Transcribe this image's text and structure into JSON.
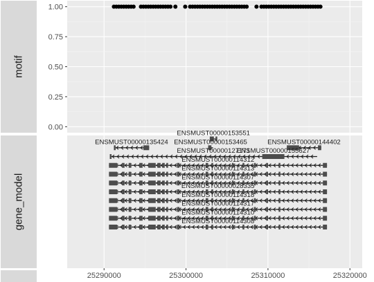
{
  "chart_data": {
    "type": "scatter",
    "layout": "faceted, two panels stacked vertically, shared x axis",
    "x_axis": {
      "ticks": [
        25290000,
        25300000,
        25310000,
        25320000
      ],
      "tick_labels": [
        "25290000",
        "25300000",
        "25310000",
        "25320000"
      ],
      "xlim": [
        25285500,
        25321500
      ]
    },
    "grid": true,
    "panels": [
      {
        "strip_label": "motif",
        "type": "scatter",
        "y_ticks": [
          0.0,
          0.25,
          0.5,
          0.75,
          1.0
        ],
        "y_tick_labels": [
          "0.00",
          "0.25",
          "0.50",
          "0.75",
          "1.00"
        ],
        "ylim": [
          -0.05,
          1.05
        ],
        "points": {
          "y": 1.0,
          "x": [
            25291200,
            25291500,
            25291800,
            25292100,
            25292400,
            25292700,
            25293000,
            25293300,
            25293600,
            25294500,
            25294800,
            25295100,
            25295400,
            25295700,
            25296000,
            25296300,
            25296600,
            25296900,
            25297200,
            25297500,
            25297800,
            25298100,
            25298700,
            25299900,
            25300500,
            25300800,
            25301100,
            25301400,
            25301700,
            25302000,
            25302300,
            25302600,
            25302900,
            25303200,
            25303500,
            25303800,
            25304100,
            25304400,
            25304700,
            25305000,
            25305300,
            25305600,
            25305900,
            25306200,
            25306500,
            25306800,
            25307100,
            25307400,
            25308600,
            25309200,
            25309500,
            25309800,
            25310100,
            25310400,
            25310700,
            25311000,
            25311300,
            25311600,
            25311900,
            25312200,
            25312500,
            25312800,
            25313100,
            25313400,
            25313700,
            25314000,
            25314300,
            25314600,
            25314900,
            25315200,
            25315500,
            25315800,
            25316100,
            25316400
          ]
        }
      },
      {
        "strip_label": "gene_model",
        "type": "gene_model",
        "transcripts": [
          {
            "id": "ENSMUST00000153551",
            "row": 1,
            "start": 25302900,
            "end": 25303800,
            "strand": "+",
            "exons": [
              [
                25302900,
                25303400
              ],
              [
                25303600,
                25303800
              ]
            ]
          },
          {
            "id": "ENSMUST00000135424",
            "row": 2,
            "start": 25291200,
            "end": 25295500,
            "strand": "-",
            "exons": [
              [
                25291200,
                25291400
              ],
              [
                25294800,
                25295500
              ]
            ]
          },
          {
            "id": "ENSMUST00000153465",
            "row": 2,
            "start": 25302700,
            "end": 25303300,
            "strand": "+",
            "exons": [
              [
                25302700,
                25303100
              ]
            ]
          },
          {
            "id": "ENSMUST00000144402",
            "row": 2,
            "start": 25312300,
            "end": 25316500,
            "strand": "-",
            "exons": [
              [
                25312300,
                25313800
              ],
              [
                25316100,
                25316500
              ]
            ]
          },
          {
            "id": "ENSMUST00000127171",
            "row": 3,
            "start": 25290700,
            "end": 25316000,
            "strand": "-",
            "exons": [
              [
                25290700,
                25290900
              ]
            ]
          },
          {
            "id": "ENSMUST00000155627",
            "row": 3,
            "start": 25309300,
            "end": 25312000,
            "strand": "+",
            "exons": [
              [
                25309300,
                25312000
              ]
            ]
          },
          {
            "id": "ENSMUST00000114312",
            "row": 4,
            "start": 25290600,
            "end": 25317200,
            "strand": "-",
            "exons": []
          },
          {
            "id": "ENSMUST00000114313",
            "row": 5,
            "start": 25290600,
            "end": 25317200,
            "strand": "-",
            "exons": []
          },
          {
            "id": "ENSMUST00000114307",
            "row": 6,
            "start": 25290600,
            "end": 25317200,
            "strand": "-",
            "exons": []
          },
          {
            "id": "ENSMUST00000028335",
            "row": 7,
            "start": 25290600,
            "end": 25317200,
            "strand": "-",
            "exons": []
          },
          {
            "id": "ENSMUST00000114318",
            "row": 8,
            "start": 25290600,
            "end": 25317200,
            "strand": "-",
            "exons": []
          },
          {
            "id": "ENSMUST00000114317",
            "row": 9,
            "start": 25290600,
            "end": 25317200,
            "strand": "-",
            "exons": []
          },
          {
            "id": "ENSMUST00000114310",
            "row": 10,
            "start": 25290600,
            "end": 25317200,
            "strand": "-",
            "exons": []
          },
          {
            "id": "ENSMUST00000114308",
            "row": 11,
            "start": 25290600,
            "end": 25317200,
            "strand": "-",
            "exons": []
          }
        ],
        "full_transcript_exons": [
          [
            25290600,
            25291600
          ],
          [
            25292200,
            25292500
          ],
          [
            25293000,
            25293300
          ],
          [
            25294300,
            25294700
          ],
          [
            25295400,
            25296300
          ],
          [
            25296500,
            25296900
          ],
          [
            25297100,
            25297400
          ],
          [
            25297600,
            25297800
          ],
          [
            25298900,
            25299200
          ],
          [
            25302400,
            25302700
          ],
          [
            25303100,
            25303300
          ],
          [
            25305600,
            25305800
          ],
          [
            25306900,
            25307100
          ],
          [
            25308300,
            25308500
          ],
          [
            25309800,
            25310000
          ],
          [
            25311300,
            25311500
          ],
          [
            25316700,
            25317200
          ]
        ]
      }
    ],
    "colors": {
      "panel_bg": "#ebebeb",
      "grid_major": "#ffffff",
      "grid_minor": "#f4f4f4",
      "strip_bg": "#d9d9d9",
      "points": "#000000",
      "exon": "#4d4d4d",
      "line": "#1a1a1a",
      "text": "#1a1a1a",
      "tick_text": "#4d4d4d"
    }
  }
}
